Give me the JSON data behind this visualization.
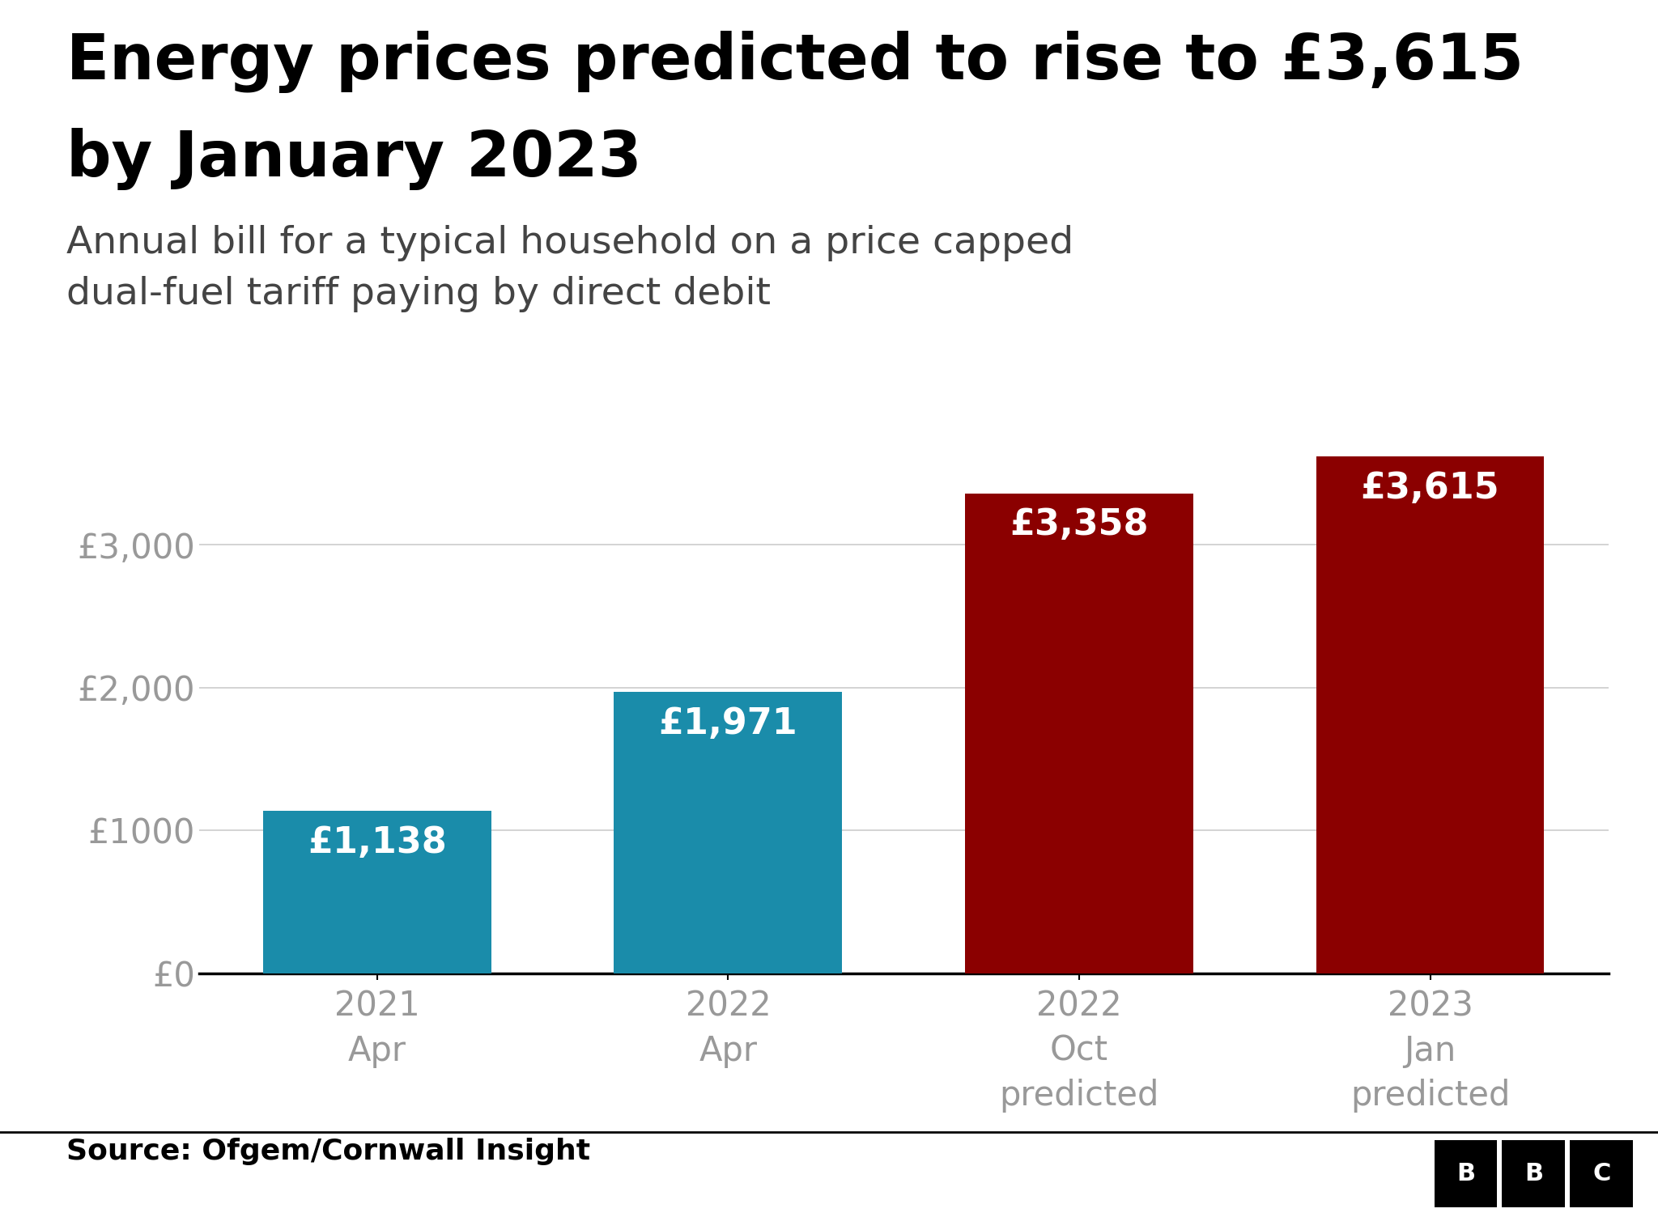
{
  "title_line1": "Energy prices predicted to rise to £3,615",
  "title_line2": "by January 2023",
  "subtitle": "Annual bill for a typical household on a price capped\ndual-fuel tariff paying by direct debit",
  "categories": [
    "2021\nApr",
    "2022\nApr",
    "2022\nOct\npredicted",
    "2023\nJan\npredicted"
  ],
  "values": [
    1138,
    1971,
    3358,
    3615
  ],
  "bar_colors": [
    "#1a8caa",
    "#1a8caa",
    "#8b0000",
    "#8b0000"
  ],
  "bar_labels": [
    "£1,138",
    "£1,971",
    "£3,358",
    "£3,615"
  ],
  "ylabel_ticks": [
    0,
    1000,
    2000,
    3000
  ],
  "ylabel_labels": [
    "£0",
    "£1000",
    "£2,000",
    "£3,000"
  ],
  "ylim": [
    0,
    4000
  ],
  "source_text": "Source: Ofgem/Cornwall Insight",
  "background_color": "#ffffff",
  "title_color": "#000000",
  "subtitle_color": "#444444",
  "tick_label_color": "#999999",
  "bar_label_color": "#ffffff",
  "source_color": "#000000",
  "grid_color": "#cccccc",
  "axis_line_color": "#000000",
  "title_fontsize": 56,
  "subtitle_fontsize": 34,
  "bar_label_fontsize": 32,
  "tick_fontsize": 30,
  "source_fontsize": 26
}
